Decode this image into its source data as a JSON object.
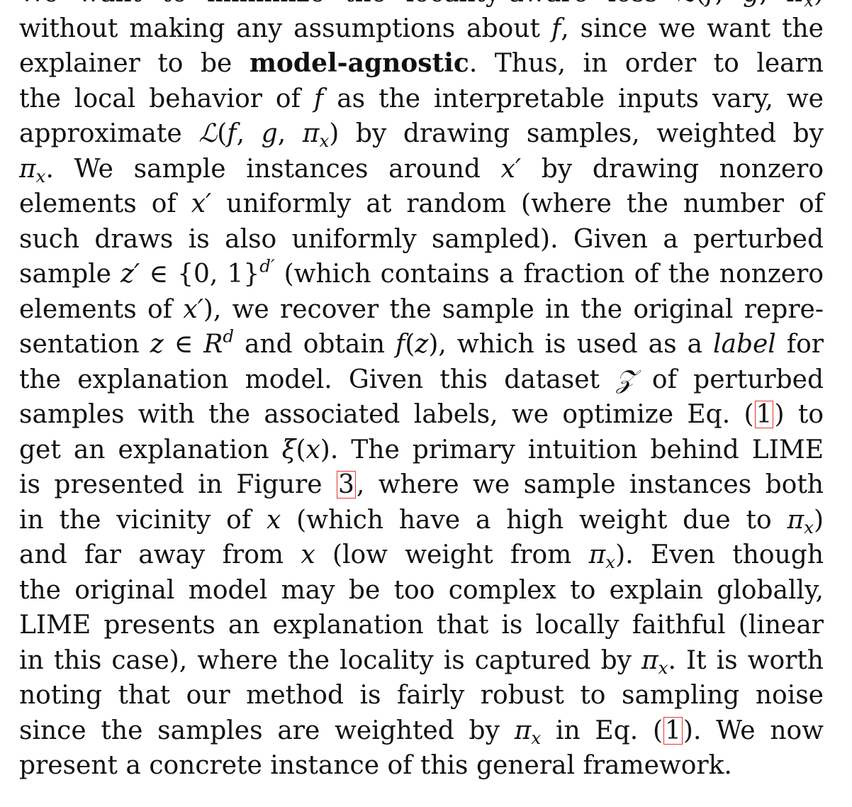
{
  "paragraph": {
    "lines": [
      [
        {
          "t": "We want to minimize the locality-aware loss "
        },
        {
          "t": "ℒ",
          "s": "m"
        },
        {
          "t": "("
        },
        {
          "t": "f",
          "s": "m"
        },
        {
          "t": ", "
        },
        {
          "t": "g",
          "s": "m"
        },
        {
          "t": ", "
        },
        {
          "t": "π",
          "s": "m"
        },
        {
          "t": "x",
          "s": "m sub"
        },
        {
          "t": ")"
        }
      ],
      [
        {
          "t": "without making any assumptions about "
        },
        {
          "t": "f",
          "s": "m"
        },
        {
          "t": ", since we want the"
        }
      ],
      [
        {
          "t": "explainer to be "
        },
        {
          "t": "model-agnostic",
          "s": "b"
        },
        {
          "t": ".  Thus, in order to learn"
        }
      ],
      [
        {
          "t": "the local behavior of "
        },
        {
          "t": "f",
          "s": "m"
        },
        {
          "t": " as the interpretable inputs vary, we"
        }
      ],
      [
        {
          "t": "approximate "
        },
        {
          "t": "ℒ",
          "s": "m"
        },
        {
          "t": "("
        },
        {
          "t": "f",
          "s": "m"
        },
        {
          "t": ", "
        },
        {
          "t": "g",
          "s": "m"
        },
        {
          "t": ", "
        },
        {
          "t": "π",
          "s": "m"
        },
        {
          "t": "x",
          "s": "m sub"
        },
        {
          "t": ") by drawing samples, weighted by"
        }
      ],
      [
        {
          "t": "π",
          "s": "m"
        },
        {
          "t": "x",
          "s": "m sub"
        },
        {
          "t": ".  We sample instances around "
        },
        {
          "t": "x′",
          "s": "m"
        },
        {
          "t": " by drawing nonzero"
        }
      ],
      [
        {
          "t": "elements of "
        },
        {
          "t": "x′",
          "s": "m"
        },
        {
          "t": " uniformly at random (where the number of"
        }
      ],
      [
        {
          "t": "such draws is also uniformly sampled).  Given a perturbed"
        }
      ],
      [
        {
          "t": "sample "
        },
        {
          "t": "z′",
          "s": "m"
        },
        {
          "t": " ∈ {0, 1}"
        },
        {
          "t": "d′",
          "s": "m sup"
        },
        {
          "t": " (which contains a fraction of the nonzero"
        }
      ],
      [
        {
          "t": "elements of "
        },
        {
          "t": "x′",
          "s": "m"
        },
        {
          "t": "), we recover the sample in the original repre-"
        }
      ],
      [
        {
          "t": "sentation "
        },
        {
          "t": "z",
          "s": "m"
        },
        {
          "t": " ∈ "
        },
        {
          "t": "R",
          "s": "m"
        },
        {
          "t": "d",
          "s": "m sup"
        },
        {
          "t": " and obtain "
        },
        {
          "t": "f",
          "s": "m"
        },
        {
          "t": "("
        },
        {
          "t": "z",
          "s": "m"
        },
        {
          "t": "), which is used as a "
        },
        {
          "t": "label",
          "s": "em"
        },
        {
          "t": " for"
        }
      ],
      [
        {
          "t": "the explanation model.  Given this dataset "
        },
        {
          "t": "𝒵",
          "s": "m"
        },
        {
          "t": " of perturbed"
        }
      ],
      [
        {
          "t": "samples with the associated labels, we optimize Eq. ("
        },
        {
          "t": "1",
          "s": "ref"
        },
        {
          "t": ") to"
        }
      ],
      [
        {
          "t": "get an explanation "
        },
        {
          "t": "ξ",
          "s": "m"
        },
        {
          "t": "("
        },
        {
          "t": "x",
          "s": "m"
        },
        {
          "t": ").  The primary intuition behind LIME"
        }
      ],
      [
        {
          "t": "is presented in Figure "
        },
        {
          "t": "3",
          "s": "ref"
        },
        {
          "t": ", where we sample instances both"
        }
      ],
      [
        {
          "t": "in the vicinity of "
        },
        {
          "t": "x",
          "s": "m"
        },
        {
          "t": " (which have a high weight due to "
        },
        {
          "t": "π",
          "s": "m"
        },
        {
          "t": "x",
          "s": "m sub"
        },
        {
          "t": ")"
        }
      ],
      [
        {
          "t": "and far away from "
        },
        {
          "t": "x",
          "s": "m"
        },
        {
          "t": " (low weight from "
        },
        {
          "t": "π",
          "s": "m"
        },
        {
          "t": "x",
          "s": "m sub"
        },
        {
          "t": ").  Even though"
        }
      ],
      [
        {
          "t": "the original model may be too complex to explain globally,"
        }
      ],
      [
        {
          "t": "LIME presents an explanation that is locally faithful (linear"
        }
      ],
      [
        {
          "t": "in this case), where the locality is captured by "
        },
        {
          "t": "π",
          "s": "m"
        },
        {
          "t": "x",
          "s": "m sub"
        },
        {
          "t": ".  It is worth"
        }
      ],
      [
        {
          "t": "noting that our method is fairly robust to sampling noise"
        }
      ],
      [
        {
          "t": "since the samples are weighted by "
        },
        {
          "t": "π",
          "s": "m"
        },
        {
          "t": "x",
          "s": "m sub"
        },
        {
          "t": " in Eq. ("
        },
        {
          "t": "1",
          "s": "ref"
        },
        {
          "t": ").  We now"
        }
      ],
      [
        {
          "t": "present a concrete instance of this general framework."
        }
      ]
    ]
  }
}
